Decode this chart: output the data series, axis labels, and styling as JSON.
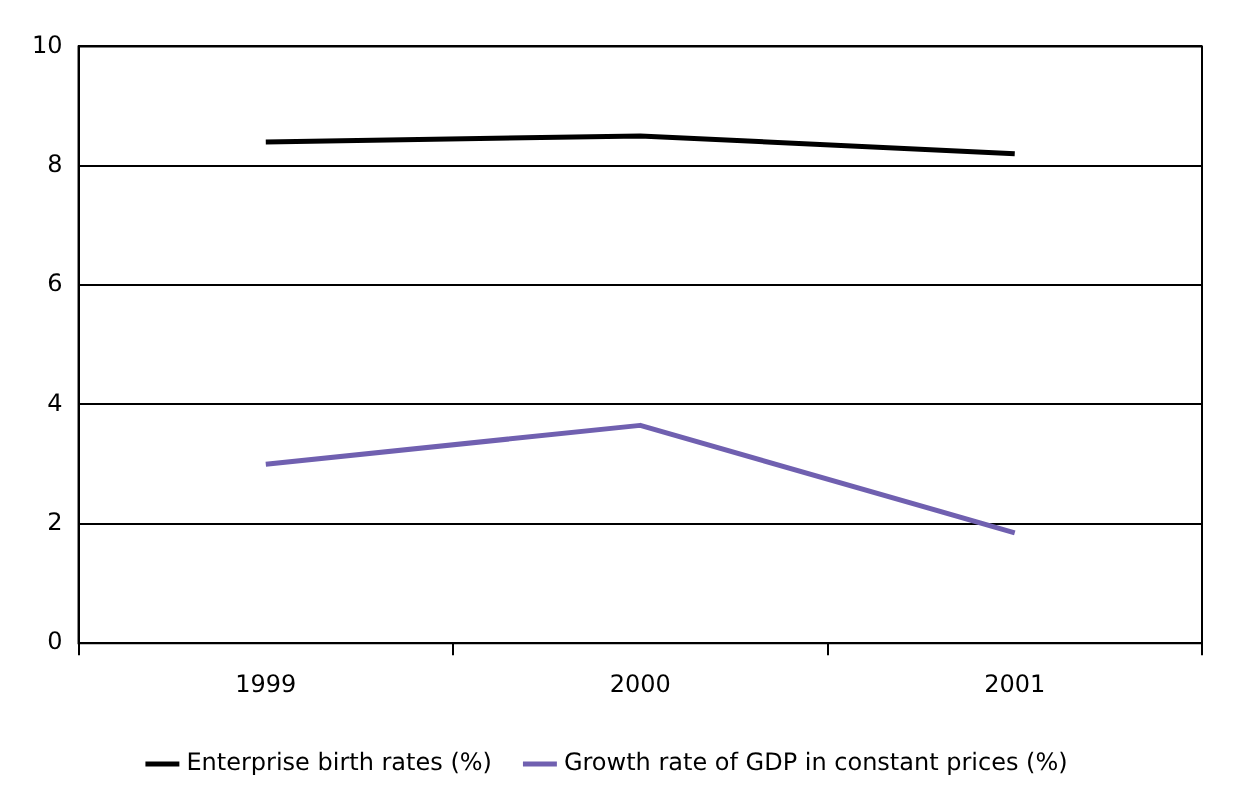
{
  "chart_data": {
    "type": "line",
    "categories": [
      "1999",
      "2000",
      "2001"
    ],
    "series": [
      {
        "name": "Enterprise birth rates (%)",
        "color": "#000000",
        "values": [
          8.4,
          8.5,
          8.2
        ]
      },
      {
        "name": "Growth rate of GDP in constant prices (%)",
        "color": "#7060b0",
        "values": [
          3.0,
          3.65,
          1.85
        ]
      }
    ],
    "ylim": [
      0,
      10
    ],
    "yticks": [
      0,
      2,
      4,
      6,
      8,
      10
    ],
    "grid": "y",
    "legend": "bottom",
    "marker": "none",
    "line_style": "solid"
  }
}
